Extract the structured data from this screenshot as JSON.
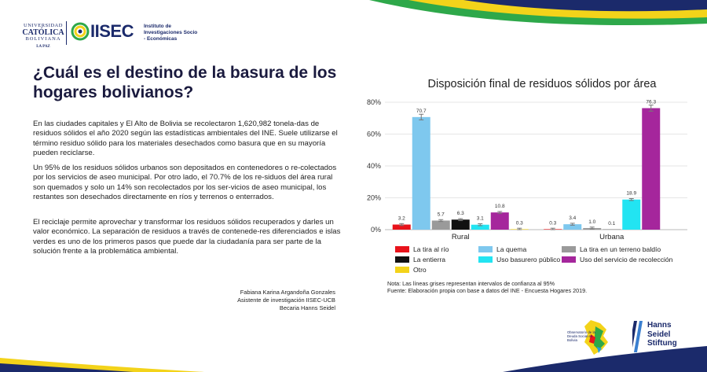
{
  "header": {
    "ucb_line1": "UNIVERSIDAD",
    "ucb_line2": "CATÓLICA",
    "ucb_line3": "BOLIVIANA",
    "ucb_line4": "LA PAZ",
    "iisec_name": "IISEC",
    "iisec_subtitle": "Instituto de Investigaciones Socio - Económicas"
  },
  "article": {
    "title": "¿Cuál es el destino de la basura de los hogares bolivianos?",
    "paragraphs": [
      "En las ciudades capitales y El Alto de Bolivia se recolectaron 1,620,982 tonela-das de residuos sólidos el año 2020 según las estadísticas ambientales del INE. Suele utilizarse el término residuo sólido para los materiales desechados como basura que en su mayoría pueden reciclarse.",
      "Un 95% de los residuos sólidos urbanos son depositados en contenedores o re-colectados por los servicios de aseo municipal. Por otro lado, el 70.7% de los re-siduos del área rural son quemados y solo un 14% son recolectados por los ser-vicios de aseo municipal, los restantes son desechados directamente en ríos y terrenos o enterrados.",
      "El reciclaje permite aprovechar y transformar los residuos sólidos recuperados y darles un valor económico. La separación de residuos a través de contenede-res diferenciados e islas verdes es uno de los primeros pasos que puede dar la ciudadanía para ser parte de la solución frente a la problemática ambiental."
    ],
    "credit_name": "Fabiana Karina Argandoña Gonzales",
    "credit_role": "Asistente de investigación IISEC-UCB",
    "credit_scholar": "Becaria Hanns Seidel"
  },
  "chart_data": {
    "type": "bar",
    "title": "Disposición final de residuos sólidos por área",
    "categories": [
      "Rural",
      "Urbana"
    ],
    "ylim": [
      0,
      80
    ],
    "yticks": [
      "0%",
      "20%",
      "40%",
      "60%",
      "80%"
    ],
    "error_bars": true,
    "series": [
      {
        "name": "La tira al río",
        "color": "#e8131b",
        "values": [
          3.2,
          0.3
        ],
        "labels": [
          "3.2",
          "0.3"
        ]
      },
      {
        "name": "La quema",
        "color": "#7ec8ee",
        "values": [
          70.7,
          3.4
        ],
        "labels": [
          "70.7",
          "3.4"
        ]
      },
      {
        "name": "La tira en un terreno baldío",
        "color": "#9a9a9a",
        "values": [
          5.7,
          1.0
        ],
        "labels": [
          "5.7",
          "1.0"
        ]
      },
      {
        "name": "La entierra",
        "color": "#111111",
        "values": [
          6.3,
          0.1
        ],
        "labels": [
          "6.3",
          "0.1"
        ]
      },
      {
        "name": "Uso basurero público",
        "color": "#22e4f2",
        "values": [
          3.1,
          18.9
        ],
        "labels": [
          "3.1",
          "18.9"
        ]
      },
      {
        "name": "Uso del servicio de recolección",
        "color": "#a5269c",
        "values": [
          10.8,
          76.3
        ],
        "labels": [
          "10.8",
          "76.3"
        ]
      },
      {
        "name": "Otro",
        "color": "#f3d31a",
        "values": [
          0.3,
          0.0
        ],
        "labels": [
          "0.3",
          ""
        ]
      }
    ],
    "legend_order": [
      0,
      1,
      2,
      3,
      4,
      5,
      6
    ],
    "legend_position": "bottom",
    "note": "Nota: Las líneas grises representan intervalos de confianza al 95%",
    "source": "Fuente: Elaboración propia con base a datos del INE - Encuesta Hogares 2019."
  },
  "footer": {
    "odsb_text": "Observatorio de la Deuda Social en Bolivia",
    "hss_line1": "Hanns",
    "hss_line2": "Seidel",
    "hss_line3": "Stiftung"
  },
  "colors": {
    "navy": "#1b2a6b",
    "yellow": "#f3d31a",
    "green": "#2ea84a",
    "gridline": "#e6e6e6"
  }
}
